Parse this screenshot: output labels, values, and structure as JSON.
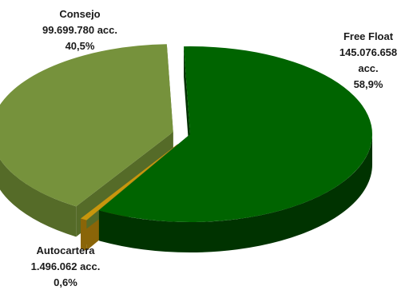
{
  "chart_data": {
    "type": "pie",
    "style": "3d-exploded",
    "slices": [
      {
        "name": "Free Float",
        "amount": "145.076.658",
        "unit": "acc.",
        "percent_label": "58,9%",
        "value": 58.9,
        "top_color": "#006400",
        "side_color": "#003300"
      },
      {
        "name": "Autocartera",
        "amount": "1.496.062",
        "unit": "acc.",
        "percent_label": "0,6%",
        "value": 0.6,
        "top_color": "#C8960C",
        "side_color": "#8A6508"
      },
      {
        "name": "Consejo",
        "amount": "99.699.780",
        "unit": "acc.",
        "percent_label": "40,5%",
        "value": 40.5,
        "top_color": "#76923C",
        "side_color": "#556B28"
      }
    ]
  }
}
